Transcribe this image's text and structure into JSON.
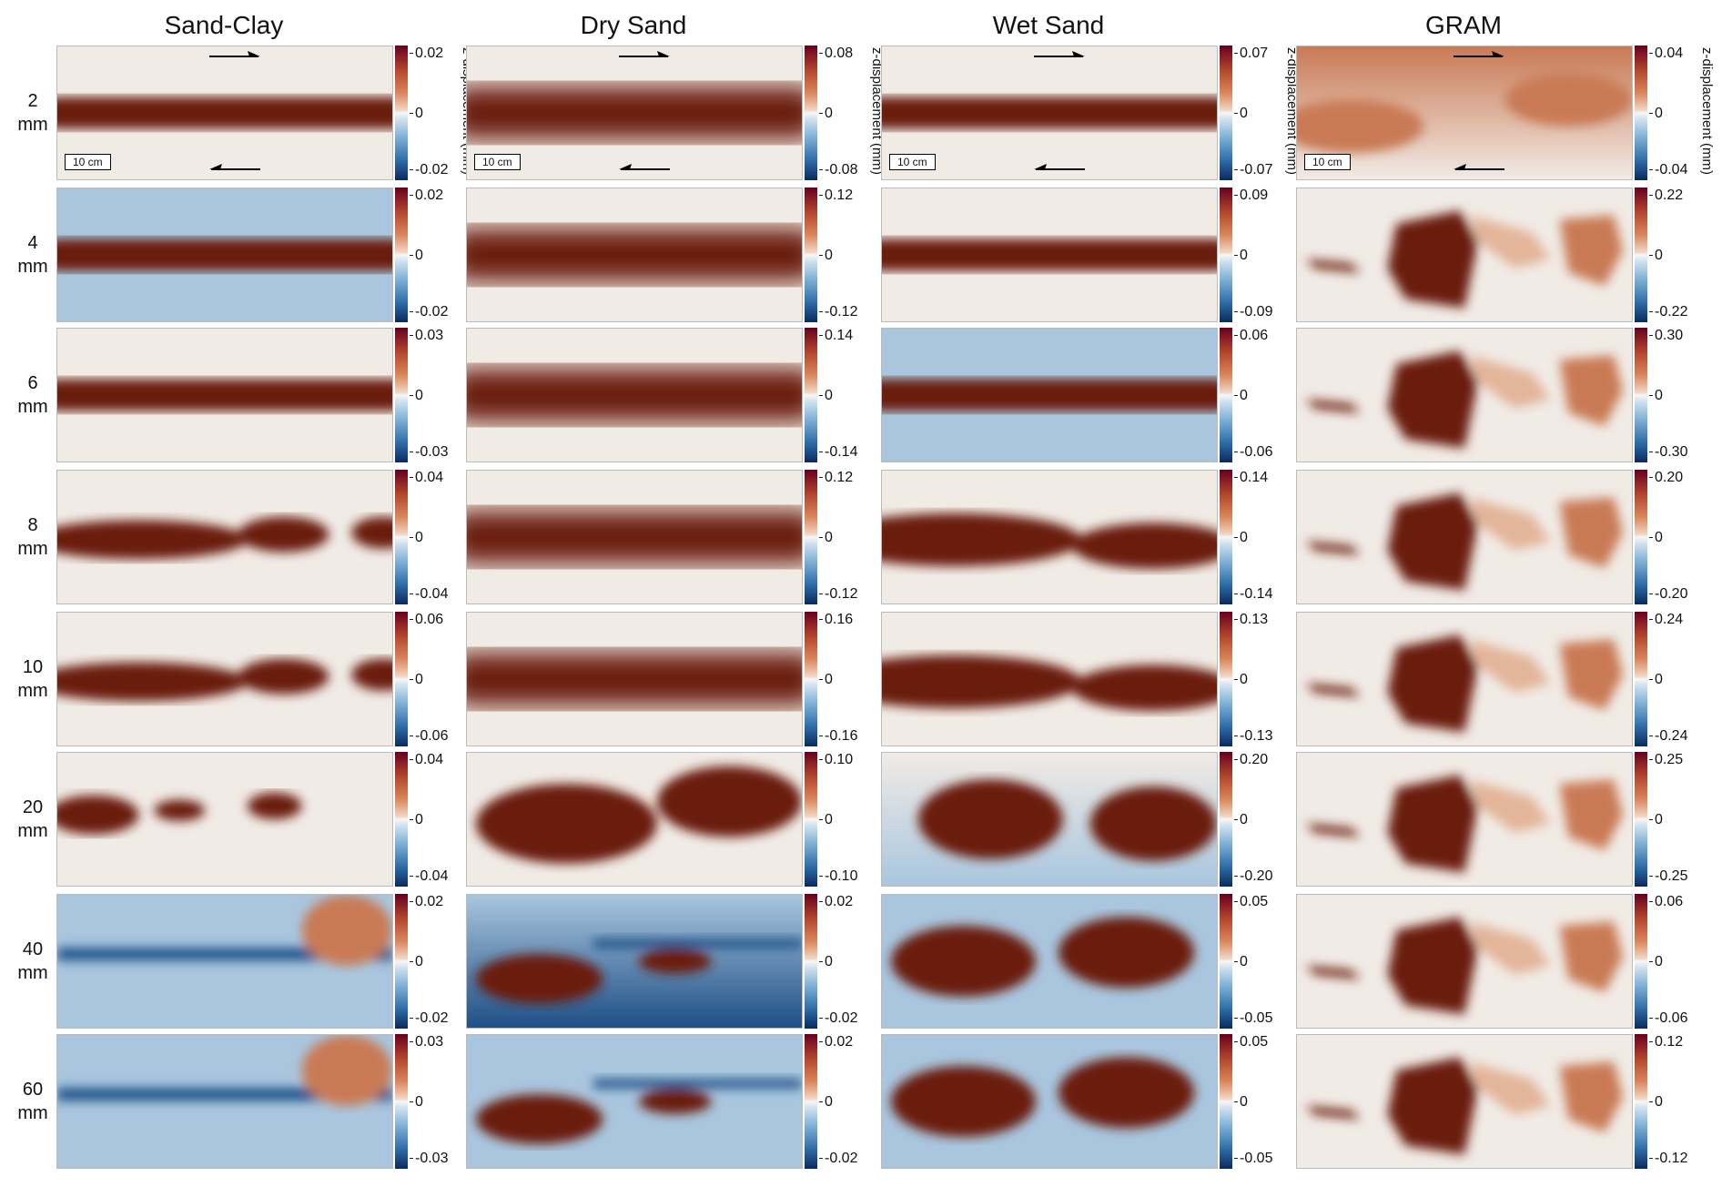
{
  "columns": [
    "Sand-Clay",
    "Dry Sand",
    "Wet Sand",
    "GRAM"
  ],
  "rows": [
    {
      "label": [
        "2",
        "mm"
      ],
      "ticks": [
        [
          "0.02",
          "0",
          "-0.02"
        ],
        [
          "0.08",
          "0",
          "-0.08"
        ],
        [
          "0.07",
          "0",
          "-0.07"
        ],
        [
          "0.04",
          "0",
          "-0.04"
        ]
      ]
    },
    {
      "label": [
        "4",
        "mm"
      ],
      "ticks": [
        [
          "0.02",
          "0",
          "-0.02"
        ],
        [
          "0.12",
          "0",
          "-0.12"
        ],
        [
          "0.09",
          "0",
          "-0.09"
        ],
        [
          "0.22",
          "0",
          "-0.22"
        ]
      ]
    },
    {
      "label": [
        "6",
        "mm"
      ],
      "ticks": [
        [
          "0.03",
          "0",
          "-0.03"
        ],
        [
          "0.14",
          "0",
          "-0.14"
        ],
        [
          "0.06",
          "0",
          "-0.06"
        ],
        [
          "0.30",
          "0",
          "-0.30"
        ]
      ]
    },
    {
      "label": [
        "8",
        "mm"
      ],
      "ticks": [
        [
          "0.04",
          "0",
          "-0.04"
        ],
        [
          "0.12",
          "0",
          "-0.12"
        ],
        [
          "0.14",
          "0",
          "-0.14"
        ],
        [
          "0.20",
          "0",
          "-0.20"
        ]
      ]
    },
    {
      "label": [
        "10",
        "mm"
      ],
      "ticks": [
        [
          "0.06",
          "0",
          "-0.06"
        ],
        [
          "0.16",
          "0",
          "-0.16"
        ],
        [
          "0.13",
          "0",
          "-0.13"
        ],
        [
          "0.24",
          "0",
          "-0.24"
        ]
      ]
    },
    {
      "label": [
        "20",
        "mm"
      ],
      "ticks": [
        [
          "0.04",
          "0",
          "-0.04"
        ],
        [
          "0.10",
          "0",
          "-0.10"
        ],
        [
          "0.20",
          "0",
          "-0.20"
        ],
        [
          "0.25",
          "0",
          "-0.25"
        ]
      ]
    },
    {
      "label": [
        "40",
        "mm"
      ],
      "ticks": [
        [
          "0.02",
          "0",
          "-0.02"
        ],
        [
          "0.02",
          "0",
          "-0.02"
        ],
        [
          "0.05",
          "0",
          "-0.05"
        ],
        [
          "0.06",
          "0",
          "-0.06"
        ]
      ]
    },
    {
      "label": [
        "60",
        "mm"
      ],
      "ticks": [
        [
          "0.03",
          "0",
          "-0.03"
        ],
        [
          "0.02",
          "0",
          "-0.02"
        ],
        [
          "0.05",
          "0",
          "-0.05"
        ],
        [
          "0.12",
          "0",
          "-0.12"
        ]
      ]
    }
  ],
  "colorbar_label": "z-displacement (mm)",
  "scale_bar": "10 cm",
  "colors": {
    "positive": "#6b1a10",
    "mid_positive": "#c97a55",
    "neutral": "#f1ebe6",
    "negative": "#1f4f86",
    "light_negative": "#a9c6de"
  }
}
